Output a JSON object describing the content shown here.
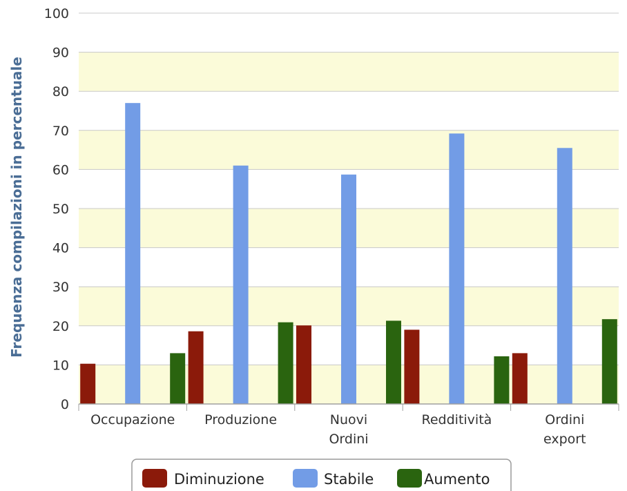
{
  "chart_data": {
    "type": "bar",
    "ylabel": "Frequenza compilazioni in percentuale",
    "xlabel": "",
    "ylim": [
      0,
      100
    ],
    "yticks": [
      0,
      10,
      20,
      30,
      40,
      50,
      60,
      70,
      80,
      90,
      100
    ],
    "categories": [
      [
        "Occupazione"
      ],
      [
        "Produzione"
      ],
      [
        "Nuovi",
        "Ordini"
      ],
      [
        "Redditività"
      ],
      [
        "Ordini",
        "export"
      ]
    ],
    "series": [
      {
        "name": "Diminuzione",
        "color": "#8b1a0a",
        "values": [
          10.3,
          18.6,
          20.1,
          19.0,
          13.0
        ]
      },
      {
        "name": "Stabile",
        "color": "#729ce6",
        "values": [
          77.0,
          61.0,
          58.7,
          69.2,
          65.5
        ]
      },
      {
        "name": "Aumento",
        "color": "#2a640f",
        "values": [
          13.0,
          20.9,
          21.3,
          12.2,
          21.7
        ]
      }
    ],
    "band_color": "#fbfbd9",
    "grid": true,
    "legend_position": "bottom-center"
  }
}
